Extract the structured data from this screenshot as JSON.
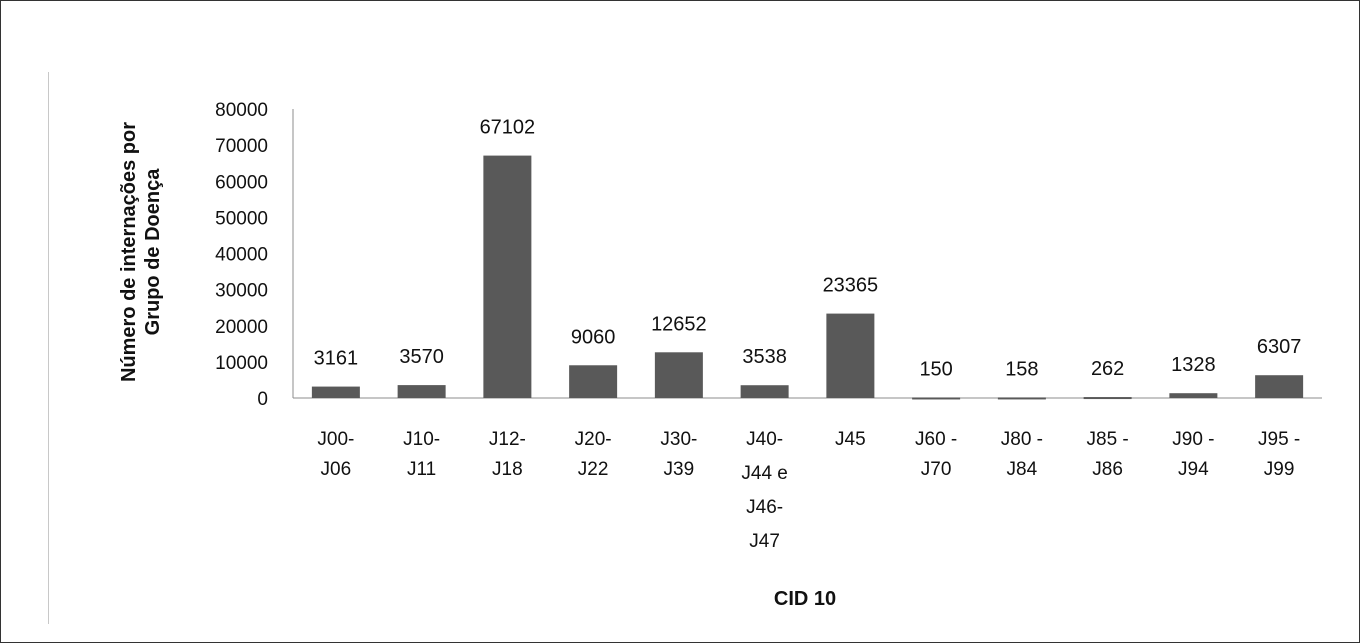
{
  "chart_data": {
    "type": "bar",
    "categories": [
      [
        "J00-",
        "J06"
      ],
      [
        "J10-",
        "J11"
      ],
      [
        "J12-",
        "J18"
      ],
      [
        "J20-",
        "J22"
      ],
      [
        "J30-",
        "J39"
      ],
      [
        "J40-",
        "J44 e",
        "J46-",
        "J47"
      ],
      [
        "J45"
      ],
      [
        "J60 -",
        "J70"
      ],
      [
        "J80 -",
        "J84"
      ],
      [
        "J85 -",
        "J86"
      ],
      [
        "J90 -",
        "J94"
      ],
      [
        "J95 -",
        "J99"
      ]
    ],
    "values": [
      3161,
      3570,
      67102,
      9060,
      12652,
      3538,
      23365,
      150,
      158,
      262,
      1328,
      6307
    ],
    "data_labels": [
      "3161",
      "3570",
      "67102",
      "9060",
      "12652",
      "3538",
      "23365",
      "150",
      "158",
      "262",
      "1328",
      "6307"
    ],
    "ylabel": [
      "Número de internações por",
      "Grupo de Doença"
    ],
    "xlabel": "CID 10",
    "ylim": [
      0,
      80000
    ],
    "yticks": [
      0,
      10000,
      20000,
      30000,
      40000,
      50000,
      60000,
      70000,
      80000
    ],
    "grid": false,
    "legend": "none",
    "colors": {
      "bar": "#595959",
      "axis": "#8c8c8c",
      "text": "#111111"
    }
  }
}
